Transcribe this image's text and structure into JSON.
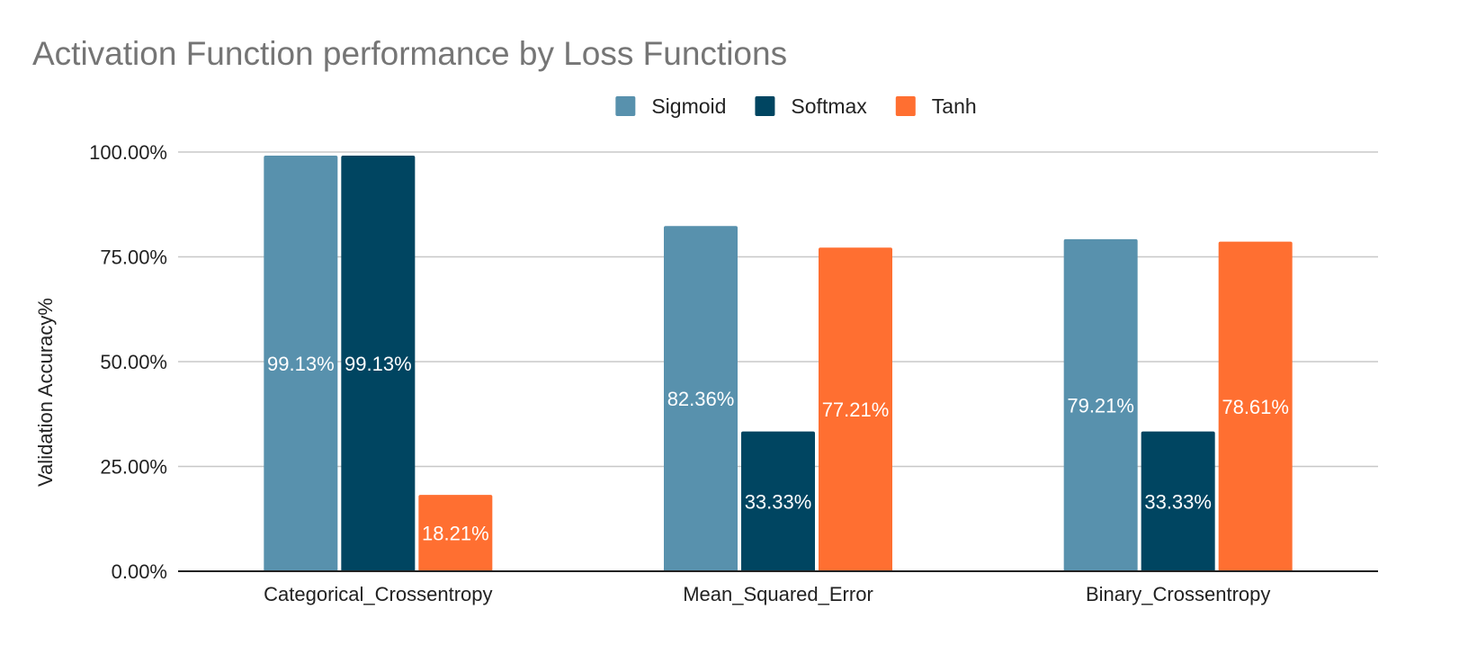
{
  "chart_data": {
    "type": "bar",
    "title": "Activation Function performance by Loss Functions",
    "xlabel": "",
    "ylabel": "Validation Accuracy%",
    "categories": [
      "Categorical_Crossentropy",
      "Mean_Squared_Error",
      "Binary_Crossentropy"
    ],
    "series": [
      {
        "name": "Sigmoid",
        "color": "#5891ad",
        "values": [
          99.13,
          82.36,
          79.21
        ],
        "labels": [
          "99.13%",
          "82.36%",
          "79.21%"
        ]
      },
      {
        "name": "Softmax",
        "color": "#004561",
        "values": [
          99.13,
          33.33,
          33.33
        ],
        "labels": [
          "99.13%",
          "33.33%",
          "33.33%"
        ]
      },
      {
        "name": "Tanh",
        "color": "#ff6f31",
        "values": [
          18.21,
          77.21,
          78.61
        ],
        "labels": [
          "18.21%",
          "77.21%",
          "78.61%"
        ]
      }
    ],
    "ylim": [
      0,
      100
    ],
    "yticks": [
      0,
      25,
      50,
      75,
      100
    ],
    "ytick_labels": [
      "0.00%",
      "25.00%",
      "50.00%",
      "75.00%",
      "100.00%"
    ],
    "grid": true,
    "legend_position": "top"
  }
}
